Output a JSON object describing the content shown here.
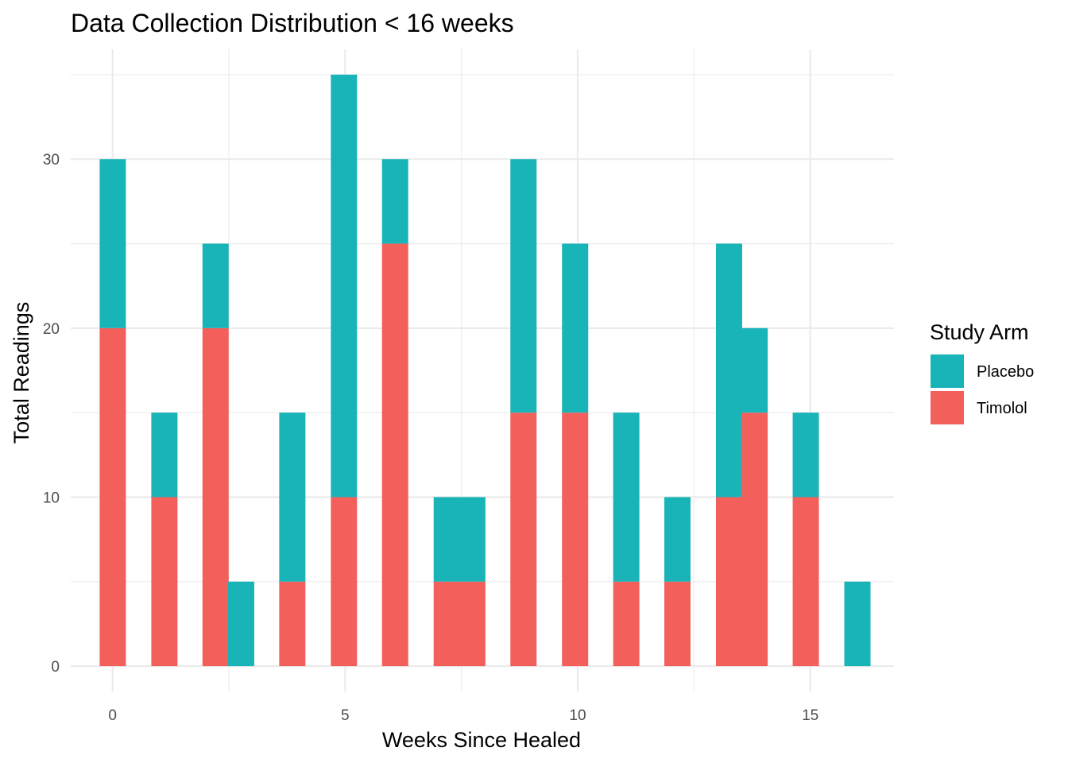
{
  "chart_data": {
    "type": "bar",
    "stacked": true,
    "title": "Data Collection Distribution < 16 weeks",
    "xlabel": "Weeks Since Healed",
    "ylabel": "Total Readings",
    "xlim": [
      -0.9,
      16.8
    ],
    "ylim": [
      -1.5,
      36.5
    ],
    "xticks": [
      0,
      5,
      10,
      15
    ],
    "yticks": [
      0,
      10,
      20,
      30
    ],
    "grid": true,
    "legend": {
      "title": "Study Arm",
      "placement": "right",
      "entries": [
        {
          "name": "Placebo",
          "color": "#19B4B8"
        },
        {
          "name": "Timolol",
          "color": "#F3605B"
        }
      ]
    },
    "bar_width": 0.555,
    "x": [
      0,
      1.11,
      2.21,
      2.76,
      3.86,
      4.97,
      6.07,
      7.18,
      7.73,
      8.83,
      9.94,
      11.04,
      12.14,
      13.25,
      13.8,
      14.9,
      16.01
    ],
    "series": [
      {
        "name": "Timolol",
        "color": "#F3605B",
        "values": [
          20,
          10,
          20,
          0,
          5,
          10,
          25,
          5,
          5,
          15,
          15,
          5,
          5,
          10,
          15,
          10,
          0
        ]
      },
      {
        "name": "Placebo",
        "color": "#19B4B8",
        "values": [
          10,
          5,
          5,
          5,
          10,
          25,
          5,
          5,
          5,
          15,
          10,
          10,
          5,
          15,
          5,
          5,
          5
        ]
      }
    ]
  }
}
